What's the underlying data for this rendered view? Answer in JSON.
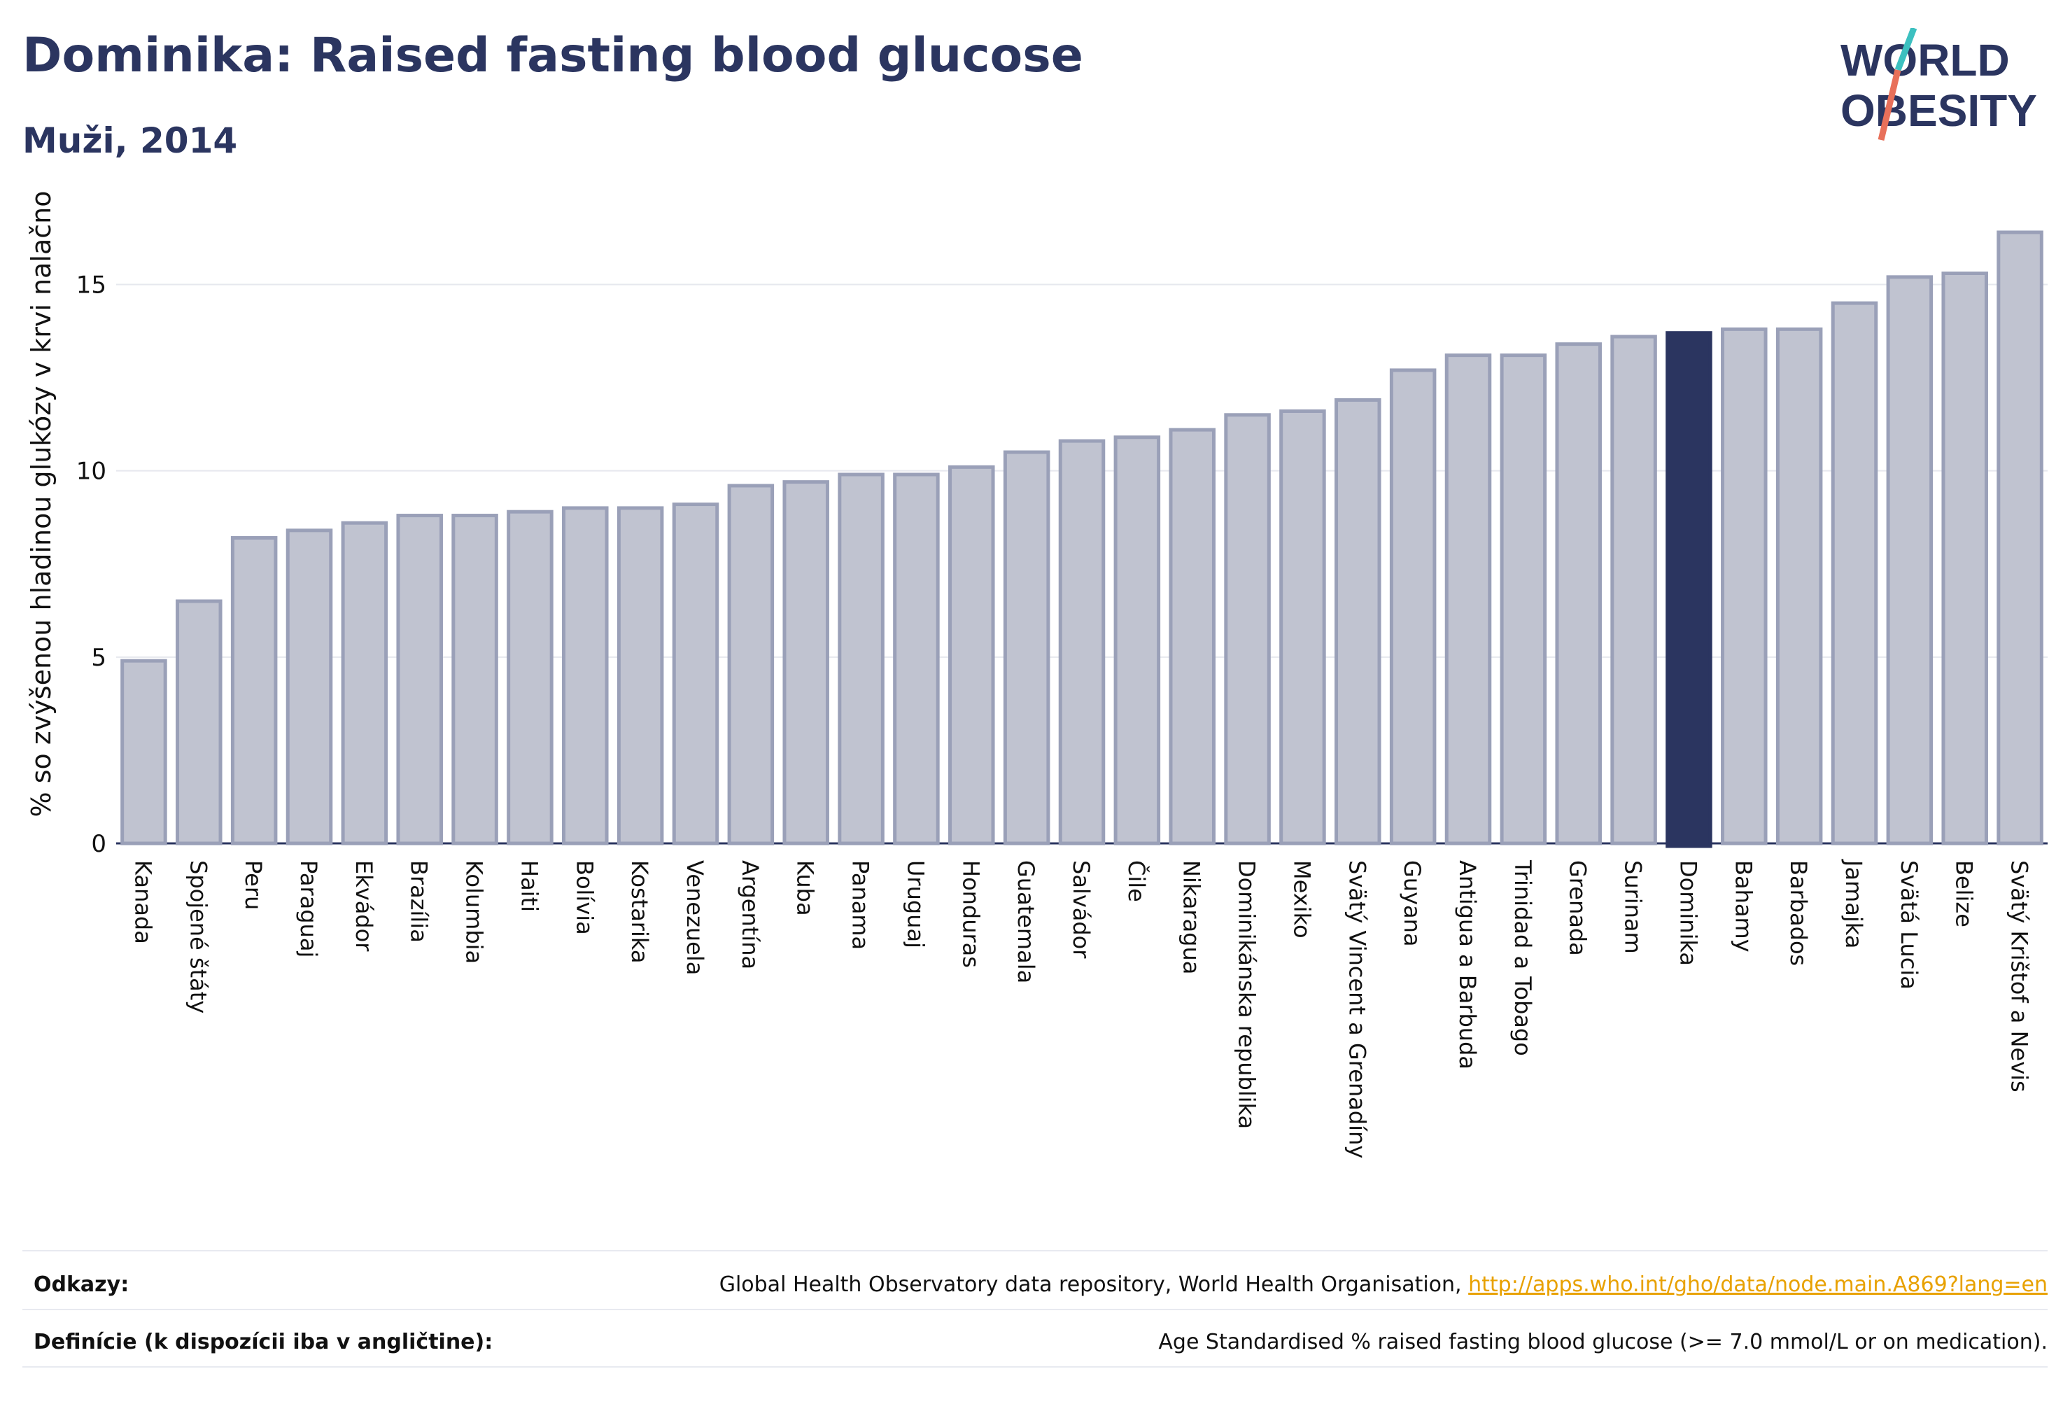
{
  "header": {
    "title": "Dominika: Raised fasting blood glucose",
    "subtitle": "Muži, 2014"
  },
  "logo": {
    "line1": "WORLD",
    "line2": "OBESITY"
  },
  "chart_data": {
    "type": "bar",
    "ylabel": "% so zvýšenou hladinou glukózy v krvi nalačno",
    "xlabel": "",
    "ylim": [
      0,
      17
    ],
    "yticks": [
      0,
      5,
      10,
      15
    ],
    "grid": true,
    "highlight": "Dominika",
    "colors": {
      "bar": "#c0c3d0",
      "bar_edge": "#9aa0b8",
      "highlight": "#2b3560"
    },
    "categories": [
      "Kanada",
      "Spojené štáty",
      "Peru",
      "Paraguaj",
      "Ekvádor",
      "Brazília",
      "Kolumbia",
      "Haiti",
      "Bolívia",
      "Kostarika",
      "Venezuela",
      "Argentína",
      "Kuba",
      "Panama",
      "Uruguaj",
      "Honduras",
      "Guatemala",
      "Salvádor",
      "Čile",
      "Nikaragua",
      "Dominikánska republika",
      "Mexiko",
      "Svätý Vincent a Grenadíny",
      "Guyana",
      "Antigua a Barbuda",
      "Trinidad a Tobago",
      "Grenada",
      "Surinam",
      "Dominika",
      "Bahamy",
      "Barbados",
      "Jamajka",
      "Svätá Lucia",
      "Belize",
      "Svätý Krištof a Nevis"
    ],
    "values": [
      4.9,
      6.5,
      8.2,
      8.4,
      8.6,
      8.8,
      8.8,
      8.9,
      9.0,
      9.0,
      9.1,
      9.6,
      9.7,
      9.9,
      9.9,
      10.1,
      10.5,
      10.8,
      10.9,
      11.1,
      11.5,
      11.6,
      11.9,
      12.7,
      13.1,
      13.1,
      13.4,
      13.6,
      13.7,
      13.8,
      13.8,
      14.5,
      15.2,
      15.3,
      16.4
    ]
  },
  "footer": {
    "references_label": "Odkazy:",
    "references_text": "Global Health Observatory data repository, World Health Organisation,",
    "references_link": "http://apps.who.int/gho/data/node.main.A869?lang=en",
    "definition_label": "Definície (k dispozícii iba v angličtine):",
    "definition_text": "Age Standardised % raised fasting blood glucose (>= 7.0 mmol/L or on medication)."
  }
}
